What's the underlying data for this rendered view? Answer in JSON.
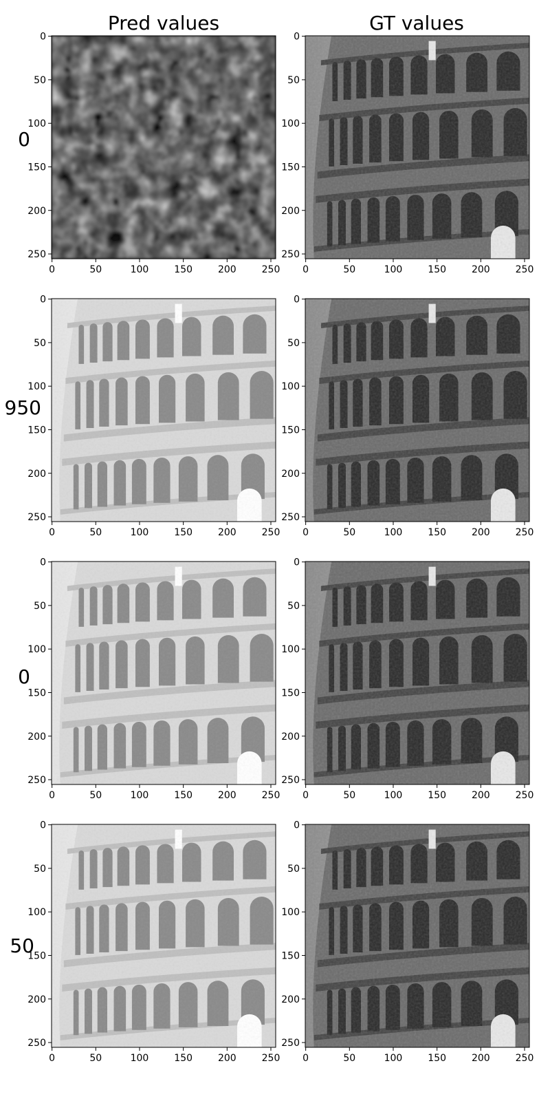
{
  "column_titles": [
    "Pred values",
    "GT values"
  ],
  "row_labels": [
    "0",
    "950",
    "0",
    "50"
  ],
  "chart_data": {
    "type": "heatmap",
    "layout": "grid of grayscale image panels, 4 rows x 2 columns",
    "colormap": "gray",
    "columns": [
      "Pred values",
      "GT values"
    ],
    "rows": [
      "0",
      "950",
      "0",
      "50"
    ],
    "image_size": [
      256,
      256
    ],
    "xlim": [
      0,
      255
    ],
    "ylim": [
      255,
      0
    ],
    "xticks": [
      0,
      50,
      100,
      150,
      200,
      250
    ],
    "yticks": [
      0,
      50,
      100,
      150,
      200,
      250
    ],
    "grid": false,
    "panels": [
      {
        "row": "0",
        "column": "Pred values",
        "content": "noise"
      },
      {
        "row": "0",
        "column": "GT values",
        "content": "colosseum"
      },
      {
        "row": "950",
        "column": "Pred values",
        "content": "colosseum-washed"
      },
      {
        "row": "950",
        "column": "GT values",
        "content": "colosseum"
      },
      {
        "row": "0",
        "column": "Pred values",
        "content": "colosseum-washed"
      },
      {
        "row": "0",
        "column": "GT values",
        "content": "colosseum"
      },
      {
        "row": "50",
        "column": "Pred values",
        "content": "colosseum-washed"
      },
      {
        "row": "50",
        "column": "GT values",
        "content": "colosseum"
      }
    ]
  },
  "colors": {
    "axis": "#000000",
    "background": "#ffffff",
    "stone_mid": "#6b6b6b",
    "stone_dark": "#2a2a2a",
    "washed_light": "#eeeeee"
  }
}
